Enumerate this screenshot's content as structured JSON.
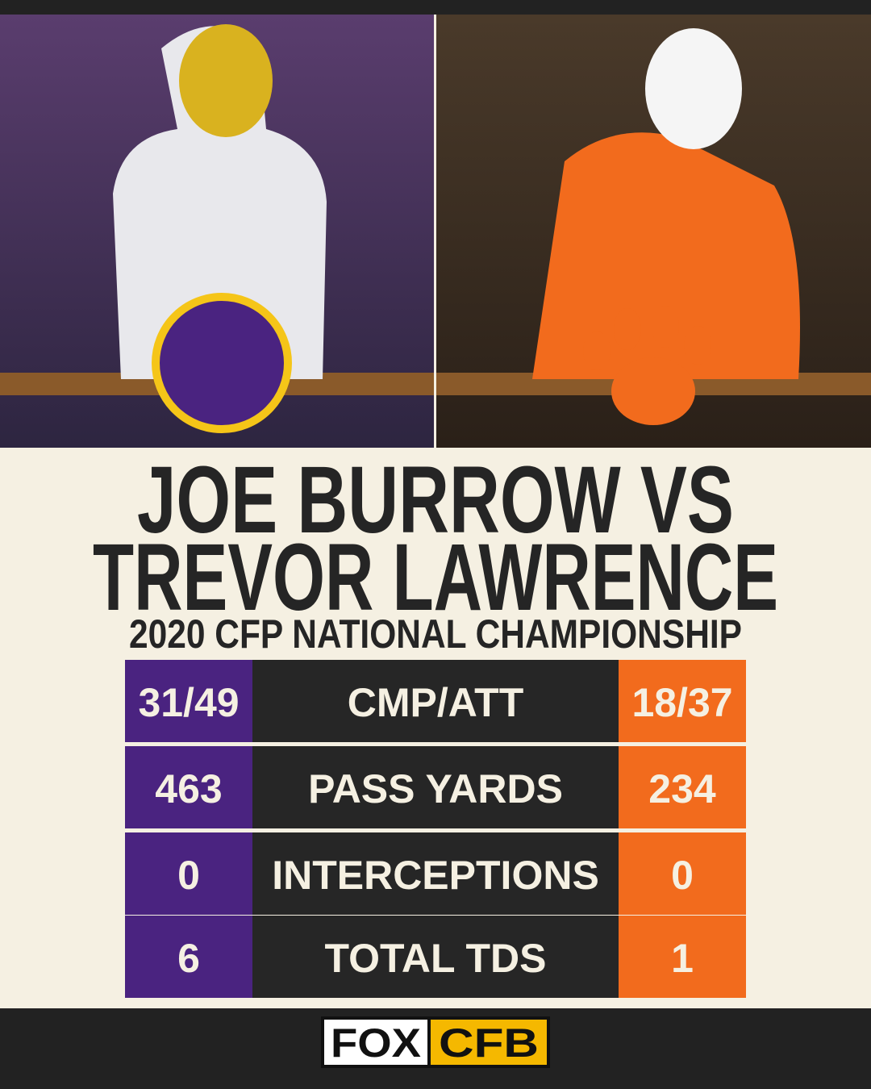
{
  "title": {
    "line1": "JOE BURROW VS",
    "line2": "TREVOR LAWRENCE",
    "subtitle": "2020 CFP NATIONAL CHAMPIONSHIP"
  },
  "table": {
    "rows": [
      [
        "31/49",
        "CMP/ATT",
        "18/37"
      ],
      [
        "463",
        "PASS YARDS",
        "234"
      ],
      [
        "0",
        "INTERCEPTIONS",
        "0"
      ],
      [
        "6",
        "TOTAL TDS",
        "1"
      ]
    ]
  },
  "footer": {
    "logo_left": "FOX",
    "logo_right": "CFB"
  }
}
